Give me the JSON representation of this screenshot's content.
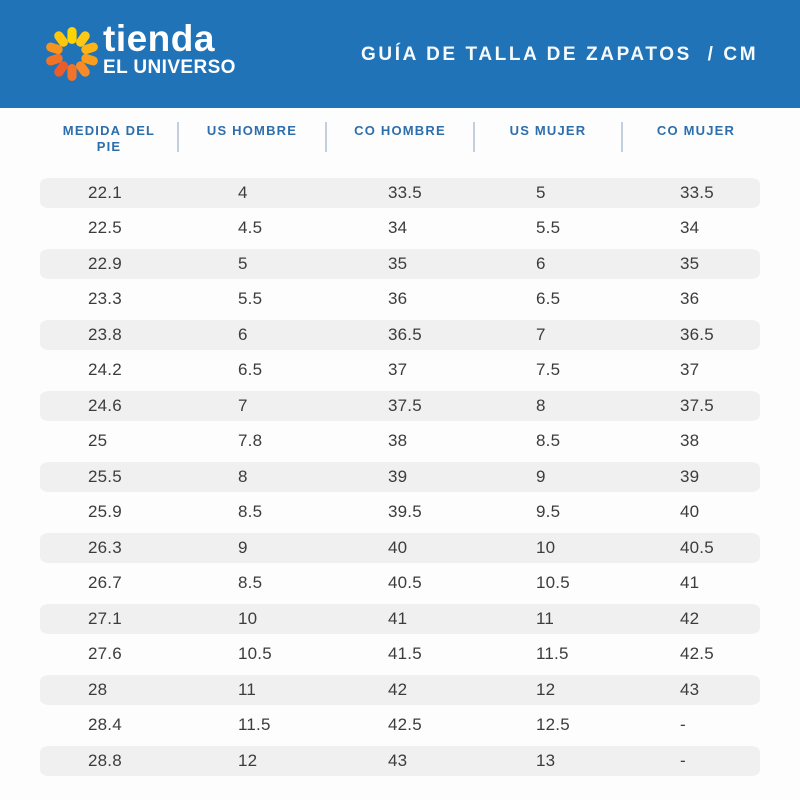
{
  "banner": {
    "brand_line1": "tienda",
    "brand_line2": "EL UNIVERSO",
    "title": "GUÍA DE TALLA DE ZAPATOS  / CM"
  },
  "logo": {
    "icon": "sun-logo-icon",
    "petal_colors": [
      "#FFD400",
      "#FFC913",
      "#FDB515",
      "#F99D1C",
      "#F68B28",
      "#F2732A",
      "#EC5B2A",
      "#F07327",
      "#F7941E",
      "#FFC60B"
    ]
  },
  "chart_data": {
    "type": "table",
    "title": "GUÍA DE TALLA DE ZAPATOS / CM",
    "columns": [
      "MEDIDA DEL PIE",
      "US HOMBRE",
      "CO HOMBRE",
      "US MUJER",
      "CO MUJER"
    ],
    "rows": [
      [
        "22.1",
        "4",
        "33.5",
        "5",
        "33.5"
      ],
      [
        "22.5",
        "4.5",
        "34",
        "5.5",
        "34"
      ],
      [
        "22.9",
        "5",
        "35",
        "6",
        "35"
      ],
      [
        "23.3",
        "5.5",
        "36",
        "6.5",
        "36"
      ],
      [
        "23.8",
        "6",
        "36.5",
        "7",
        "36.5"
      ],
      [
        "24.2",
        "6.5",
        "37",
        "7.5",
        "37"
      ],
      [
        "24.6",
        "7",
        "37.5",
        "8",
        "37.5"
      ],
      [
        "25",
        "7.8",
        "38",
        "8.5",
        "38"
      ],
      [
        "25.5",
        "8",
        "39",
        "9",
        "39"
      ],
      [
        "25.9",
        "8.5",
        "39.5",
        "9.5",
        "40"
      ],
      [
        "26.3",
        "9",
        "40",
        "10",
        "40.5"
      ],
      [
        "26.7",
        "8.5",
        "40.5",
        "10.5",
        "41"
      ],
      [
        "27.1",
        "10",
        "41",
        "11",
        "42"
      ],
      [
        "27.6",
        "10.5",
        "41.5",
        "11.5",
        "42.5"
      ],
      [
        "28",
        "11",
        "42",
        "12",
        "43"
      ],
      [
        "28.4",
        "11.5",
        "42.5",
        "12.5",
        "-"
      ],
      [
        "28.8",
        "12",
        "43",
        "13",
        "-"
      ]
    ]
  },
  "colors": {
    "banner_bg": "#2173B8",
    "header_text": "#2D6EAC",
    "header_divider": "#C3CFDA",
    "row_stripe": "#F0F0F0",
    "cell_text": "#3C3C3C",
    "brand_text": "#FFFFFF"
  }
}
